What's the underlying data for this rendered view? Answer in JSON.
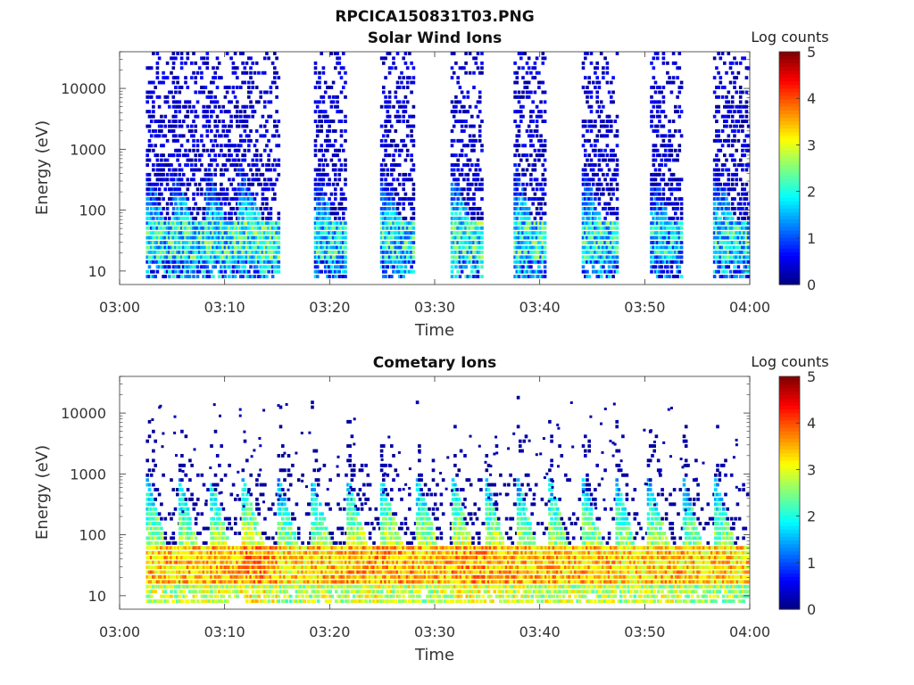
{
  "figure": {
    "title": "RPCICA150831T03.PNG"
  },
  "colorbar": {
    "label": "Log counts",
    "ticks": [
      "0",
      "1",
      "2",
      "3",
      "4",
      "5"
    ],
    "range": [
      0,
      5
    ],
    "colormap": "jet"
  },
  "chart_data": [
    {
      "type": "heatmap",
      "title": "Solar Wind Ions",
      "xlabel": "Time",
      "ylabel": "Energy (eV)",
      "yscale": "log",
      "x_ticks": [
        "03:00",
        "03:10",
        "03:20",
        "03:30",
        "03:40",
        "03:50",
        "04:00"
      ],
      "y_ticks": [
        "10",
        "100",
        "1000",
        "10000"
      ],
      "xlim": [
        "03:00",
        "04:00"
      ],
      "ylim": [
        6,
        40000
      ],
      "colorbar_label": "Log counts",
      "bursts": [
        {
          "start_min": 2.5,
          "end_min": 5.0,
          "peak_log_counts": 3.0,
          "core_energy_eV": 30
        },
        {
          "start_min": 5.0,
          "end_min": 8.2,
          "peak_log_counts": 3.1,
          "core_energy_eV": 30
        },
        {
          "start_min": 8.2,
          "end_min": 11.2,
          "peak_log_counts": 3.1,
          "core_energy_eV": 30
        },
        {
          "start_min": 11.2,
          "end_min": 15.0,
          "peak_log_counts": 3.2,
          "core_energy_eV": 30
        },
        {
          "start_min": 18.5,
          "end_min": 21.5,
          "peak_log_counts": 2.9,
          "core_energy_eV": 30
        },
        {
          "start_min": 24.8,
          "end_min": 28.0,
          "peak_log_counts": 3.0,
          "core_energy_eV": 30
        },
        {
          "start_min": 31.5,
          "end_min": 34.5,
          "peak_log_counts": 3.2,
          "core_energy_eV": 30
        },
        {
          "start_min": 37.5,
          "end_min": 40.5,
          "peak_log_counts": 3.1,
          "core_energy_eV": 30
        },
        {
          "start_min": 44.0,
          "end_min": 47.3,
          "peak_log_counts": 3.0,
          "core_energy_eV": 30
        },
        {
          "start_min": 50.5,
          "end_min": 53.5,
          "peak_log_counts": 2.8,
          "core_energy_eV": 30
        },
        {
          "start_min": 56.5,
          "end_min": 59.8,
          "peak_log_counts": 3.0,
          "core_energy_eV": 30
        }
      ]
    },
    {
      "type": "heatmap",
      "title": "Cometary Ions",
      "xlabel": "Time",
      "ylabel": "Energy (eV)",
      "yscale": "log",
      "x_ticks": [
        "03:00",
        "03:10",
        "03:20",
        "03:30",
        "03:40",
        "03:50",
        "04:00"
      ],
      "y_ticks": [
        "10",
        "100",
        "1000",
        "10000"
      ],
      "xlim": [
        "03:00",
        "04:00"
      ],
      "ylim": [
        6,
        40000
      ],
      "colorbar_label": "Log counts",
      "bursts": [
        {
          "start_min": 2.5,
          "end_min": 5.6,
          "peak_log_counts": 4.1,
          "core_energy_eV": 30
        },
        {
          "start_min": 5.6,
          "end_min": 8.6,
          "peak_log_counts": 4.1,
          "core_energy_eV": 30
        },
        {
          "start_min": 8.6,
          "end_min": 11.6,
          "peak_log_counts": 4.2,
          "core_energy_eV": 30
        },
        {
          "start_min": 11.6,
          "end_min": 15.0,
          "peak_log_counts": 4.3,
          "core_energy_eV": 30
        },
        {
          "start_min": 15.0,
          "end_min": 18.2,
          "peak_log_counts": 4.0,
          "core_energy_eV": 30
        },
        {
          "start_min": 18.2,
          "end_min": 21.6,
          "peak_log_counts": 4.1,
          "core_energy_eV": 30
        },
        {
          "start_min": 21.6,
          "end_min": 24.8,
          "peak_log_counts": 4.2,
          "core_energy_eV": 30
        },
        {
          "start_min": 24.8,
          "end_min": 28.2,
          "peak_log_counts": 4.2,
          "core_energy_eV": 30
        },
        {
          "start_min": 28.2,
          "end_min": 31.6,
          "peak_log_counts": 4.1,
          "core_energy_eV": 30
        },
        {
          "start_min": 31.6,
          "end_min": 34.8,
          "peak_log_counts": 4.3,
          "core_energy_eV": 30
        },
        {
          "start_min": 34.8,
          "end_min": 37.8,
          "peak_log_counts": 4.2,
          "core_energy_eV": 30
        },
        {
          "start_min": 37.8,
          "end_min": 40.8,
          "peak_log_counts": 4.1,
          "core_energy_eV": 30
        },
        {
          "start_min": 40.8,
          "end_min": 44.0,
          "peak_log_counts": 4.1,
          "core_energy_eV": 30
        },
        {
          "start_min": 44.0,
          "end_min": 47.2,
          "peak_log_counts": 4.1,
          "core_energy_eV": 30
        },
        {
          "start_min": 47.2,
          "end_min": 50.2,
          "peak_log_counts": 4.0,
          "core_energy_eV": 30
        },
        {
          "start_min": 50.2,
          "end_min": 53.6,
          "peak_log_counts": 4.1,
          "core_energy_eV": 30
        },
        {
          "start_min": 53.6,
          "end_min": 56.6,
          "peak_log_counts": 4.0,
          "core_energy_eV": 30
        },
        {
          "start_min": 56.6,
          "end_min": 59.8,
          "peak_log_counts": 4.0,
          "core_energy_eV": 30
        }
      ]
    }
  ]
}
